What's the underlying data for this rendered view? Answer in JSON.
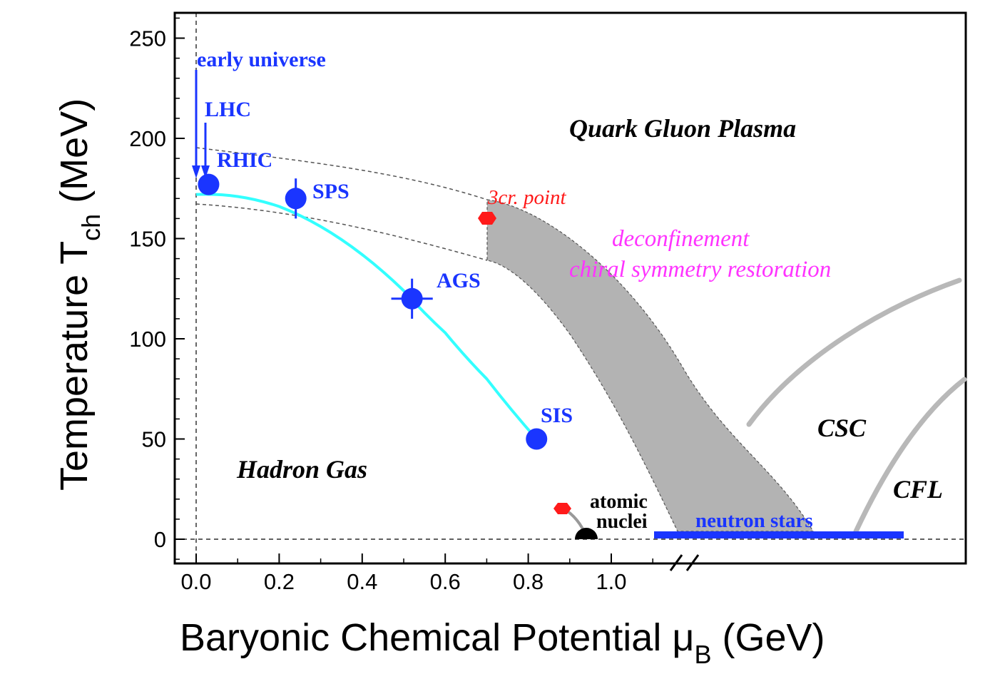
{
  "chart_data": {
    "type": "scatter",
    "xlabel": "Baryonic Chemical Potential μ",
    "xlabel_sub": "B",
    "xlabel_unit": " (GeV)",
    "ylabel": "Temperature T",
    "ylabel_sub": "ch",
    "ylabel_unit": " (MeV)",
    "xlim": [
      -0.05,
      1.1
    ],
    "ylim": [
      -12,
      262
    ],
    "x_ticks": [
      "0.0",
      "0.2",
      "0.4",
      "0.6",
      "0.8",
      "1.0"
    ],
    "y_ticks": [
      "0",
      "50",
      "100",
      "150",
      "200",
      "250"
    ],
    "grid": false,
    "experiments": [
      {
        "name": "RHIC",
        "x": 0.03,
        "y": 177,
        "xerr": 0,
        "yerr": 5
      },
      {
        "name": "SPS",
        "x": 0.24,
        "y": 170,
        "xerr": 0,
        "yerr": 10
      },
      {
        "name": "AGS",
        "x": 0.52,
        "y": 120,
        "xerr": 0.05,
        "yerr": 10
      },
      {
        "name": "SIS",
        "x": 0.82,
        "y": 50,
        "xerr": 0,
        "yerr": 0
      }
    ],
    "arrows": [
      {
        "name": "early universe",
        "x": 0.0
      },
      {
        "name": "LHC",
        "x": 0.02
      }
    ],
    "freeze_out_curve": [
      [
        0,
        172
      ],
      [
        0.1,
        171
      ],
      [
        0.2,
        166
      ],
      [
        0.3,
        156
      ],
      [
        0.4,
        142
      ],
      [
        0.5,
        124
      ],
      [
        0.6,
        103
      ],
      [
        0.7,
        80
      ],
      [
        0.82,
        50
      ]
    ],
    "critical_point": {
      "label": "3cr. point",
      "x": 0.7,
      "y": 160
    },
    "nuclear_point": {
      "label_line1": "atomic",
      "label_line2": "nuclei",
      "x": 0.94,
      "y": 0
    },
    "regions": {
      "qgp": "Quark Gluon Plasma",
      "hadron_gas": "Hadron Gas",
      "csc": "CSC",
      "cfl": "CFL",
      "deconfinement": "deconfinement",
      "chiral": "chiral symmetry restoration",
      "neutron_stars": "neutron stars"
    }
  },
  "colors": {
    "experiment": "#1a35ff",
    "freeze_out": "#33ffff",
    "band": "#b3b3b3",
    "critical": "#ff1a1a",
    "magenta": "#ff33ff",
    "phase_lines": "#b8b8b8"
  }
}
